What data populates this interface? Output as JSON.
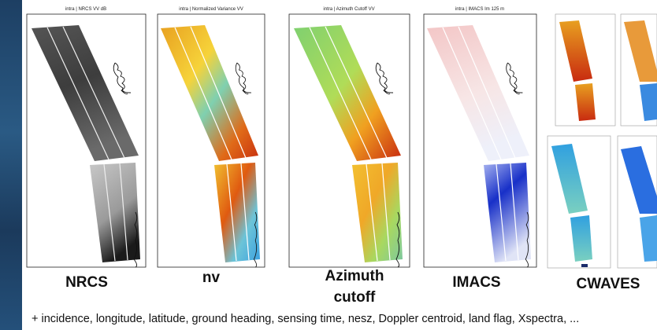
{
  "panels": [
    {
      "title": "intra | NRCS VV dB",
      "label": "NRCS"
    },
    {
      "title": "intra | Normalized Variance VV",
      "label": "nv"
    },
    {
      "title": "intra | Azimuth Cutoff VV",
      "label": "Azimuth cutoff"
    },
    {
      "title": "intra | IMACS Im 125 m",
      "label": "IMACS"
    }
  ],
  "cwaves_label": "CWAVES",
  "footer": "+ incidence, longitude, latitude, ground heading, sensing time, nesz, Doppler centroid, land flag, Xspectra, ..."
}
